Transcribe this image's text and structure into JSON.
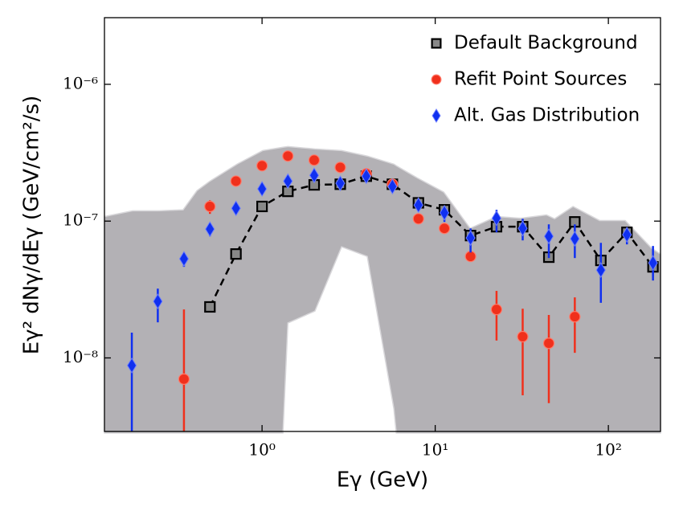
{
  "chart_data": {
    "type": "scatter",
    "xlabel": "Eγ (GeV)",
    "ylabel": "Eγ² dNγ/dEγ (GeV/cm²/s)",
    "log_x": true,
    "log_y": true,
    "xlim": [
      0.123,
      200
    ],
    "ylim": [
      2.9e-09,
      3.07e-06
    ],
    "xticks": [
      {
        "value": 1,
        "label": "10⁰"
      },
      {
        "value": 10,
        "label": "10¹"
      },
      {
        "value": 100,
        "label": "10²"
      }
    ],
    "yticks": [
      {
        "value": 1e-08,
        "label": "10⁻⁸"
      },
      {
        "value": 1e-07,
        "label": "10⁻⁷"
      },
      {
        "value": 1e-06,
        "label": "10⁻⁶"
      }
    ],
    "legend": "upper right",
    "band": {
      "color": "#b3b1b5",
      "x": [
        0.123,
        0.179,
        0.252,
        0.35,
        0.421,
        0.5,
        0.718,
        1.01,
        1.32,
        1.41,
        2.02,
        2.88,
        4.05,
        5.77,
        5.96,
        7.87,
        11.2,
        15.9,
        22.6,
        31.2,
        43.9,
        48.9,
        62.5,
        89,
        125,
        178,
        200
      ],
      "upper": [
        1.08e-07,
        1.19e-07,
        1.19e-07,
        1.21e-07,
        1.67e-07,
        1.96e-07,
        2.61e-07,
        3.28e-07,
        3.47e-07,
        3.51e-07,
        3.37e-07,
        3.28e-07,
        2.99e-07,
        2.61e-07,
        2.54e-07,
        2.07e-07,
        1.63e-07,
        8.85e-08,
        1.08e-07,
        1.05e-07,
        1.11e-07,
        1.04e-07,
        1.28e-07,
        1.01e-07,
        1.01e-07,
        6.32e-08,
        5.75e-08
      ],
      "lower": [
        null,
        null,
        null,
        null,
        null,
        null,
        null,
        null,
        null,
        1.8e-08,
        2.2e-08,
        6.49e-08,
        5.52e-08,
        4.25e-09,
        null,
        null,
        null,
        null,
        null,
        null,
        null,
        null,
        null,
        null,
        null,
        null,
        null
      ]
    },
    "series": [
      {
        "name": "Default Background",
        "color": "#000000",
        "marker": "square",
        "line": "dashed",
        "x": [
          0.5,
          0.707,
          1.0,
          1.41,
          2.0,
          2.83,
          4.0,
          5.66,
          8.0,
          11.3,
          16.0,
          22.6,
          32.0,
          45.3,
          64.0,
          90.5,
          128,
          181
        ],
        "values": [
          2.36e-08,
          5.75e-08,
          1.28e-07,
          1.65e-07,
          1.84e-07,
          1.86e-07,
          2.13e-07,
          1.86e-07,
          1.36e-07,
          1.21e-07,
          7.84e-08,
          9.1e-08,
          9.1e-08,
          5.45e-08,
          9.87e-08,
          5.16e-08,
          8.28e-08,
          4.63e-08
        ]
      },
      {
        "name": "Refit Point Sources",
        "color": "#f0301c",
        "marker": "circle",
        "x": [
          0.354,
          0.5,
          0.707,
          1.0,
          1.41,
          2.0,
          2.83,
          4.0,
          5.66,
          8.0,
          11.3,
          16.0,
          22.6,
          32.0,
          45.3,
          64.0
        ],
        "values": [
          7e-09,
          1.28e-07,
          1.96e-07,
          2.54e-07,
          2.99e-07,
          2.79e-07,
          2.47e-07,
          2.22e-07,
          1.86e-07,
          1.04e-07,
          8.85e-08,
          5.52e-08,
          2.26e-08,
          1.43e-08,
          1.28e-08,
          2e-08
        ],
        "err_low": [
          null,
          1.13e-07,
          null,
          null,
          null,
          null,
          null,
          null,
          null,
          null,
          null,
          null,
          1.34e-08,
          5.33e-09,
          4.67e-09,
          1.09e-08
        ],
        "err_high": [
          2.26e-08,
          1.42e-07,
          null,
          null,
          null,
          null,
          null,
          null,
          null,
          null,
          null,
          null,
          3.09e-08,
          2.29e-08,
          2.06e-08,
          2.77e-08
        ]
      },
      {
        "name": "Alt. Gas Distribution",
        "color": "#1030f0",
        "marker": "diamond",
        "x": [
          0.177,
          0.25,
          0.354,
          0.5,
          0.707,
          1.0,
          1.41,
          2.0,
          2.83,
          4.0,
          5.66,
          8.0,
          11.3,
          16.0,
          22.6,
          32.0,
          45.3,
          64.0,
          90.5,
          128,
          181
        ],
        "values": [
          8.8e-09,
          2.59e-08,
          5.3e-08,
          8.74e-08,
          1.24e-07,
          1.72e-07,
          1.96e-07,
          2.16e-07,
          1.89e-07,
          2.13e-07,
          1.79e-07,
          1.31e-07,
          1.15e-07,
          7.53e-08,
          1.05e-07,
          8.85e-08,
          7.74e-08,
          7.43e-08,
          4.39e-08,
          7.95e-08,
          4.95e-08
        ],
        "err_low": [
          null,
          1.82e-08,
          4.63e-08,
          7.74e-08,
          null,
          null,
          null,
          null,
          null,
          null,
          null,
          null,
          9.87e-08,
          5.9e-08,
          8.28e-08,
          7.23e-08,
          5.37e-08,
          5.37e-08,
          2.53e-08,
          6.76e-08,
          3.68e-08
        ],
        "err_high": [
          1.53e-08,
          3.21e-08,
          5.9e-08,
          9.6e-08,
          null,
          null,
          null,
          null,
          null,
          null,
          null,
          null,
          1.29e-07,
          8.85e-08,
          1.21e-07,
          1.04e-07,
          9.47e-08,
          9.47e-08,
          6.94e-08,
          8.98e-08,
          6.58e-08
        ]
      }
    ]
  }
}
